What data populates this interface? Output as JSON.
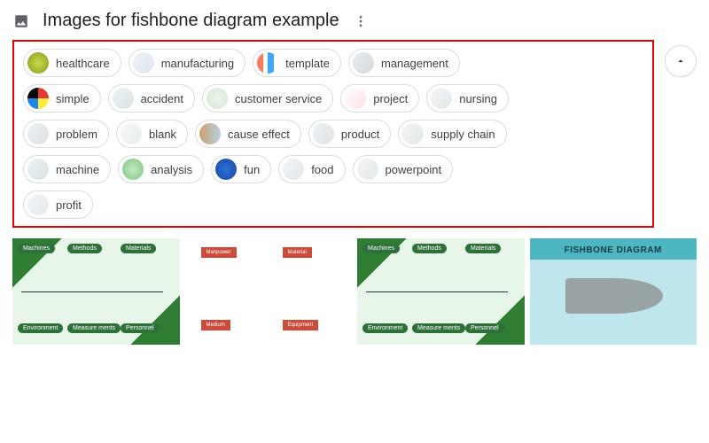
{
  "header": {
    "title": "Images for fishbone diagram example"
  },
  "chips": [
    {
      "label": "healthcare",
      "thumb_bg": "radial-gradient(circle,#c9d94a,#8a9a1f)"
    },
    {
      "label": "manufacturing",
      "thumb_bg": "linear-gradient(135deg,#eef3f7,#dce7ef)"
    },
    {
      "label": "template",
      "thumb_bg": "linear-gradient(90deg,#ff7a59 0 30%,#fff 30% 50%,#3ea6ff 50% 80%,#fff 80%)"
    },
    {
      "label": "management",
      "thumb_bg": "linear-gradient(135deg,#e8ecef,#d2d9de)"
    },
    {
      "label": "simple",
      "thumb_bg": "conic-gradient(#e53935 0 90deg,#ffeb3b 90deg 180deg,#1e88e5 180deg 270deg,#000 270deg 360deg)"
    },
    {
      "label": "accident",
      "thumb_bg": "linear-gradient(135deg,#f0f3f5,#dbe2e6)"
    },
    {
      "label": "customer service",
      "thumb_bg": "radial-gradient(circle,#eef4ee,#d7e6d7)"
    },
    {
      "label": "project",
      "thumb_bg": "linear-gradient(135deg,#fff,#ffe0e6)"
    },
    {
      "label": "nursing",
      "thumb_bg": "linear-gradient(135deg,#f5f7f8,#e2e7ea)"
    },
    {
      "label": "problem",
      "thumb_bg": "linear-gradient(135deg,#eef2f4,#d9e0e4)"
    },
    {
      "label": "blank",
      "thumb_bg": "linear-gradient(135deg,#f5f7f8,#e8edee)"
    },
    {
      "label": "cause effect",
      "thumb_bg": "linear-gradient(90deg,#cfa06a,#b3d1e6)"
    },
    {
      "label": "product",
      "thumb_bg": "linear-gradient(135deg,#eef2f4,#dde4e8)"
    },
    {
      "label": "supply chain",
      "thumb_bg": "linear-gradient(135deg,#f2f5f6,#e1e7ea)"
    },
    {
      "label": "machine",
      "thumb_bg": "linear-gradient(135deg,#eef2f4,#d9e0e4)"
    },
    {
      "label": "analysis",
      "thumb_bg": "radial-gradient(circle,#c6e8c6,#7cc77c)"
    },
    {
      "label": "fun",
      "thumb_bg": "radial-gradient(circle,#2b6fd6,#1a4aa0)"
    },
    {
      "label": "food",
      "thumb_bg": "linear-gradient(135deg,#f3f5f6,#e2e7ea)"
    },
    {
      "label": "powerpoint",
      "thumb_bg": "linear-gradient(135deg,#f3f5f6,#e4e9ec)"
    },
    {
      "label": "profit",
      "thumb_bg": "linear-gradient(135deg,#f3f5f6,#e4e9ec)"
    }
  ],
  "rows": [
    [
      0,
      1,
      2,
      3
    ],
    [
      4,
      5,
      6,
      7,
      8
    ],
    [
      9,
      10,
      11,
      12,
      13
    ],
    [
      14,
      15,
      16,
      17,
      18
    ],
    [
      19
    ]
  ],
  "results": [
    {
      "variant": "green",
      "ovals": [
        "Machines",
        "Methods",
        "Materials",
        "Environment",
        "Measure ments",
        "Personnel"
      ]
    },
    {
      "variant": "red",
      "boxes": [
        "Manpower",
        "Material",
        "Medium",
        "Equipment"
      ]
    },
    {
      "variant": "green",
      "ovals": [
        "Machines",
        "Methods",
        "Materials",
        "Environment",
        "Measure ments",
        "Personnel"
      ]
    },
    {
      "variant": "teal",
      "title": "FISHBONE DIAGRAM"
    }
  ],
  "colors": {
    "border_highlight": "#e60000",
    "chip_border": "#dadce0",
    "text_primary": "#202124",
    "text_chip": "#3c4043",
    "icon": "#5f6368"
  }
}
